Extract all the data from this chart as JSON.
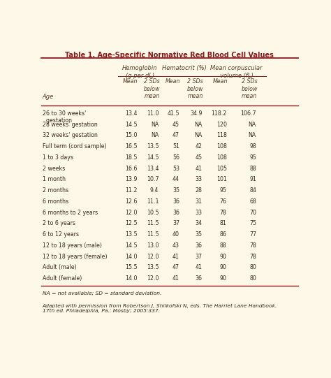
{
  "title": "Table 1. Age-Specific Normative Red Blood Cell Values",
  "bg_color": "#fdf8e8",
  "title_color": "#8B1A1A",
  "header_color": "#5a3e28",
  "text_color": "#3a2a1a",
  "rows": [
    [
      "26 to 30 weeks'\n  gestation",
      "13.4",
      "11.0",
      "41.5",
      "34.9",
      "118.2",
      "106.7"
    ],
    [
      "28 weeks' gestation",
      "14.5",
      "NA",
      "45",
      "NA",
      "120",
      "NA"
    ],
    [
      "32 weeks' gestation",
      "15.0",
      "NA",
      "47",
      "NA",
      "118",
      "NA"
    ],
    [
      "Full term (cord sample)",
      "16.5",
      "13.5",
      "51",
      "42",
      "108",
      "98"
    ],
    [
      "1 to 3 days",
      "18.5",
      "14.5",
      "56",
      "45",
      "108",
      "95"
    ],
    [
      "2 weeks",
      "16.6",
      "13.4",
      "53",
      "41",
      "105",
      "88"
    ],
    [
      "1 month",
      "13.9",
      "10.7",
      "44",
      "33",
      "101",
      "91"
    ],
    [
      "2 months",
      "11.2",
      "9.4",
      "35",
      "28",
      "95",
      "84"
    ],
    [
      "6 months",
      "12.6",
      "11.1",
      "36",
      "31",
      "76",
      "68"
    ],
    [
      "6 months to 2 years",
      "12.0",
      "10.5",
      "36",
      "33",
      "78",
      "70"
    ],
    [
      "2 to 6 years",
      "12.5",
      "11.5",
      "37",
      "34",
      "81",
      "75"
    ],
    [
      "6 to 12 years",
      "13.5",
      "11.5",
      "40",
      "35",
      "86",
      "77"
    ],
    [
      "12 to 18 years (male)",
      "14.5",
      "13.0",
      "43",
      "36",
      "88",
      "78"
    ],
    [
      "12 to 18 years (female)",
      "14.0",
      "12.0",
      "41",
      "37",
      "90",
      "78"
    ],
    [
      "Adult (male)",
      "15.5",
      "13.5",
      "47",
      "41",
      "90",
      "80"
    ],
    [
      "Adult (female)",
      "14.0",
      "12.0",
      "41",
      "36",
      "90",
      "80"
    ]
  ],
  "footnote1": "NA = not available; SD = standard deviation.",
  "footnote2": "Adapted with permission from Robertson J, Shilkofski N, eds. The Harriet Lane Handbook.\n17th ed. Philadelphia, Pa.: Mosby; 2005:337.",
  "grp_hdr_labels": [
    "Hemoglobin\n(g per dL)",
    "Hematocrit (%)",
    "Mean corpuscular\nvolume (fL)"
  ],
  "sub_hdr_labels": [
    "Mean",
    "2 SDs\nbelow\nmean",
    "Mean",
    "2 SDs\nbelow\nmean",
    "Mean",
    "2 SDs\nbelow\nmean"
  ],
  "age_col_label": "Age",
  "line_color": "#8B1A1A",
  "col_boundaries": [
    0.0,
    0.3,
    0.395,
    0.468,
    0.556,
    0.645,
    0.748,
    0.875
  ]
}
